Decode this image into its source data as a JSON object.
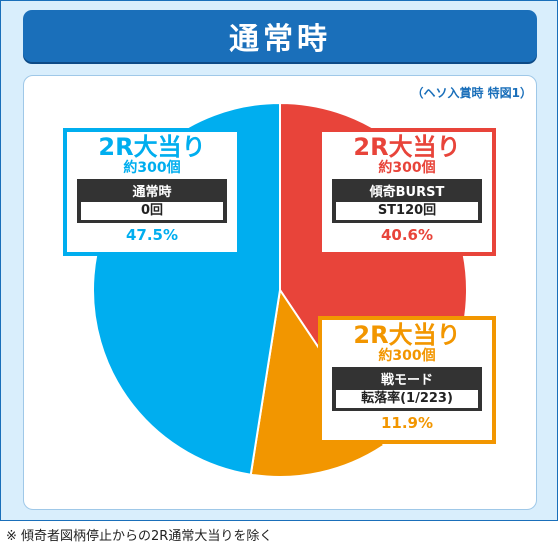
{
  "header": {
    "title": "通常時"
  },
  "note_top": "（ヘソ入賞時 特図1）",
  "footnote": "※ 傾奇者図柄停止からの2R通常大当りを除く",
  "chart_data": {
    "type": "pie",
    "title": "通常時",
    "start_angle_deg": 0,
    "direction": "clockwise",
    "slices": [
      {
        "title": "2R大当り",
        "rounds": "約300個",
        "mode": "傾奇BURST",
        "sub": "ST120回",
        "percent_label": "40.6%",
        "value": 40.6,
        "color": "#e8443a"
      },
      {
        "title": "2R大当り",
        "rounds": "約300個",
        "mode": "戦モード",
        "sub": "転落率(1/223)",
        "percent_label": "11.9%",
        "value": 11.9,
        "color": "#f29600"
      },
      {
        "title": "2R大当り",
        "rounds": "約300個",
        "mode": "通常時",
        "sub": "0回",
        "percent_label": "47.5%",
        "value": 47.5,
        "color": "#00aeef"
      }
    ]
  }
}
